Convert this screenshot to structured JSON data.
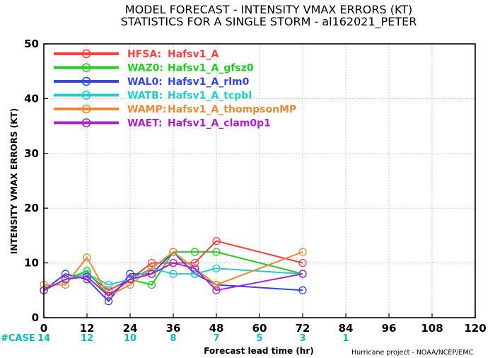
{
  "chart_data": {
    "type": "line",
    "title_lines": [
      "MODEL FORECAST - INTENSITY VMAX ERRORS (KT)",
      "STATISTICS FOR A SINGLE STORM - al162021_PETER"
    ],
    "ylabel": "INTENSITY VMAX ERRORS (KT)",
    "xlabel": "Forecast lead time (hr)",
    "xlim": [
      0,
      120
    ],
    "ylim": [
      0,
      50
    ],
    "x_ticks": [
      0,
      12,
      24,
      36,
      48,
      60,
      72,
      84,
      96,
      108,
      120
    ],
    "y_ticks": [
      0,
      10,
      20,
      30,
      40,
      50
    ],
    "grid": true,
    "legend_position": "top-left",
    "case_label": "#CASE",
    "case_counts": [
      {
        "x": 0,
        "n": "14"
      },
      {
        "x": 12,
        "n": "12"
      },
      {
        "x": 24,
        "n": "10"
      },
      {
        "x": 36,
        "n": "8"
      },
      {
        "x": 48,
        "n": "7"
      },
      {
        "x": 60,
        "n": "5"
      },
      {
        "x": 72,
        "n": "3"
      },
      {
        "x": 84,
        "n": "1"
      }
    ],
    "credit": "Hurricane project - NOAA/NCEP/EMC",
    "x": [
      0,
      6,
      12,
      18,
      24,
      30,
      36,
      42,
      48,
      72
    ],
    "series": [
      {
        "code": "HFSA:",
        "name": "Hafsv1_A",
        "color": "#ff4040",
        "values": [
          5,
          7,
          8,
          5,
          7,
          10,
          10,
          10,
          14,
          10
        ]
      },
      {
        "code": "WAZ0:",
        "name": "Hafsv1_A_gfsz0",
        "color": "#22cc22",
        "values": [
          5,
          7,
          8.5,
          4,
          7,
          6,
          12,
          12,
          12,
          8
        ]
      },
      {
        "code": "WAL0:",
        "name": "Hafsv1_A_rlm0",
        "color": "#3344ee",
        "values": [
          5,
          8,
          7,
          3,
          8,
          8,
          12,
          8,
          6,
          5
        ]
      },
      {
        "code": "WATB:",
        "name": "Hafsv1_A_tcpbl",
        "color": "#22cccc",
        "values": [
          5,
          7,
          8,
          6,
          7,
          9,
          8,
          8,
          9,
          8
        ]
      },
      {
        "code": "WAMP:",
        "name": "Hafsv1_A_thompsonMP",
        "color": "#ee8833",
        "values": [
          6,
          6,
          11,
          4,
          6,
          9,
          12,
          9,
          6,
          12
        ]
      },
      {
        "code": "WAET:",
        "name": "Hafsv1_A_clam0p1",
        "color": "#aa22cc",
        "values": [
          5,
          7,
          7.5,
          4,
          7,
          8,
          10,
          9,
          5,
          8
        ]
      }
    ]
  }
}
